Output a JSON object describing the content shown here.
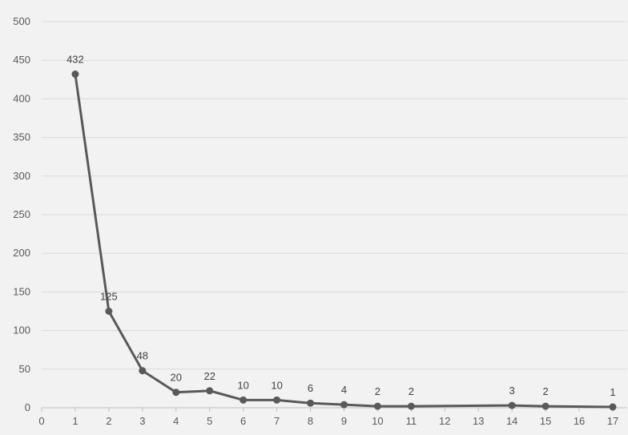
{
  "chart_data": {
    "type": "line",
    "title": "",
    "xlabel": "",
    "ylabel": "",
    "xlim": [
      0,
      17
    ],
    "ylim": [
      0,
      500
    ],
    "x_ticks": [
      0,
      1,
      2,
      3,
      4,
      5,
      6,
      7,
      8,
      9,
      10,
      11,
      12,
      13,
      14,
      15,
      16,
      17
    ],
    "y_ticks": [
      0,
      50,
      100,
      150,
      200,
      250,
      300,
      350,
      400,
      450,
      500
    ],
    "grid": "horizontal",
    "legend": "none",
    "colors": {
      "series": "#595959",
      "grid": "#d9d9d9",
      "background": "#f2f2f2"
    },
    "series": [
      {
        "x": [
          1,
          2,
          3,
          4,
          5,
          6,
          7,
          8,
          9,
          10,
          11,
          14,
          15,
          17
        ],
        "values": [
          432,
          125,
          48,
          20,
          22,
          10,
          10,
          6,
          4,
          2,
          2,
          3,
          2,
          1
        ],
        "data_labels": [
          "432",
          "125",
          "48",
          "20",
          "22",
          "10",
          "10",
          "6",
          "4",
          "2",
          "2",
          "3",
          "2",
          "1"
        ]
      }
    ]
  }
}
